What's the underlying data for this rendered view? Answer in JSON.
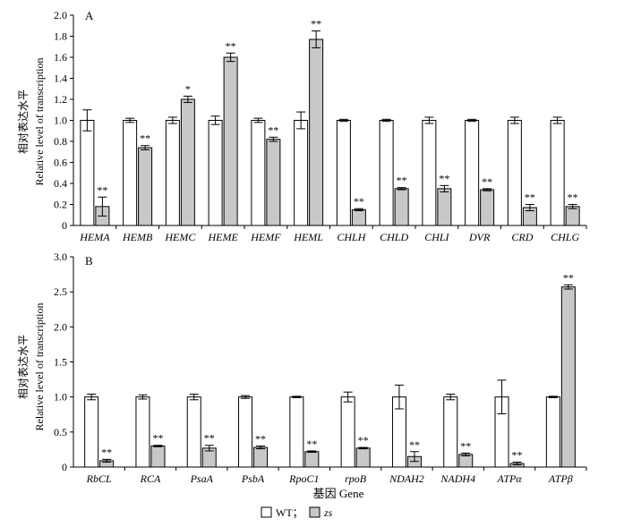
{
  "chart_data": [
    {
      "type": "bar",
      "panel_label": "A",
      "ylabel_cn": "相对表达水平",
      "ylabel_en": "Relative level of transcription",
      "ylim": [
        0,
        2.0
      ],
      "yticks": [
        "0",
        "0.2",
        "0.4",
        "0.6",
        "0.8",
        "1.0",
        "1.2",
        "1.4",
        "1.6",
        "1.8",
        "2.0"
      ],
      "categories": [
        "HEMA",
        "HEMB",
        "HEMC",
        "HEME",
        "HEMF",
        "HEML",
        "CHLH",
        "CHLD",
        "CHLI",
        "DVR",
        "CRD",
        "CHLG"
      ],
      "series": [
        {
          "name": "WT",
          "values": [
            1.0,
            1.0,
            1.0,
            1.0,
            1.0,
            1.0,
            1.0,
            1.0,
            1.0,
            1.0,
            1.0,
            1.0
          ],
          "errors": [
            0.1,
            0.02,
            0.03,
            0.04,
            0.02,
            0.08,
            0.01,
            0.01,
            0.03,
            0.01,
            0.03,
            0.03
          ]
        },
        {
          "name": "zs",
          "values": [
            0.18,
            0.74,
            1.2,
            1.6,
            0.82,
            1.77,
            0.15,
            0.35,
            0.35,
            0.34,
            0.17,
            0.18
          ],
          "errors": [
            0.09,
            0.02,
            0.03,
            0.04,
            0.02,
            0.08,
            0.01,
            0.01,
            0.03,
            0.01,
            0.03,
            0.02
          ]
        }
      ],
      "annotations": [
        "**",
        "**",
        "*",
        "**",
        "**",
        "**",
        "**",
        "**",
        "**",
        "**",
        "**",
        "**"
      ]
    },
    {
      "type": "bar",
      "panel_label": "B",
      "ylabel_cn": "相对表达水平",
      "ylabel_en": "Relative level of transcription",
      "xlabel": "基因 Gene",
      "ylim": [
        0,
        3.0
      ],
      "yticks": [
        "0",
        "0.5",
        "1.0",
        "1.5",
        "2.0",
        "2.5",
        "3.0"
      ],
      "categories": [
        "RbCL",
        "RCA",
        "PsaA",
        "PsbA",
        "RpoC1",
        "rpoB",
        "NDAH2",
        "NADH4",
        "ATPα",
        "ATPβ"
      ],
      "series": [
        {
          "name": "WT",
          "values": [
            1.0,
            1.0,
            1.0,
            1.0,
            1.0,
            1.0,
            1.0,
            1.0,
            1.0,
            1.0
          ],
          "errors": [
            0.04,
            0.03,
            0.04,
            0.02,
            0.01,
            0.07,
            0.17,
            0.04,
            0.24,
            0.01
          ]
        },
        {
          "name": "zs",
          "values": [
            0.09,
            0.3,
            0.27,
            0.28,
            0.22,
            0.27,
            0.15,
            0.18,
            0.05,
            2.57
          ],
          "errors": [
            0.02,
            0.01,
            0.04,
            0.02,
            0.01,
            0.01,
            0.07,
            0.02,
            0.02,
            0.03
          ]
        }
      ],
      "annotations": [
        "**",
        "**",
        "**",
        "**",
        "**",
        "**",
        "**",
        "**",
        "**",
        "**"
      ]
    }
  ],
  "legend": {
    "wt_label": "WT；",
    "zs_label": "zs",
    "wt_color": "#ffffff",
    "zs_color": "#c8c8c8"
  },
  "colors": {
    "wt_fill": "#ffffff",
    "zs_fill": "#c8c8c8",
    "stroke": "#000000"
  }
}
